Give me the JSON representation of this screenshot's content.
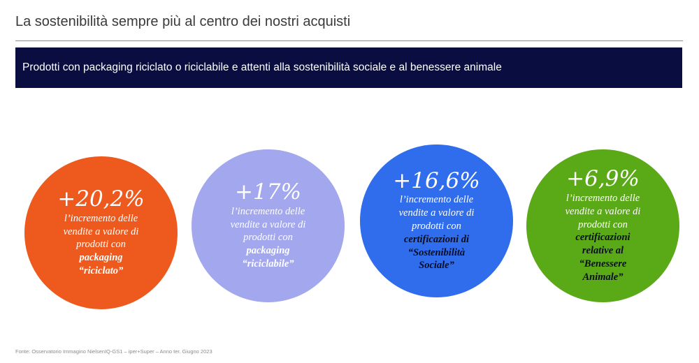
{
  "header": {
    "title": "La sostenibilità sempre più al centro dei nostri acquisti"
  },
  "banner": {
    "text": "Prodotti con packaging riciclato o riciclabile e attenti alla sostenibilità sociale e al benessere animale"
  },
  "colors": {
    "banner_bg": "#0a0d40",
    "circle_1": "#ee5a1e",
    "circle_2": "#a2a7ee",
    "circle_3": "#2f6ded",
    "circle_4": "#5aa917"
  },
  "stats": [
    {
      "value": "+20,2%",
      "lines": [
        "l’incremento delle",
        "vendite a valore di",
        "prodotti con"
      ],
      "strong": [
        "packaging",
        "“riciclato”"
      ]
    },
    {
      "value": "+17%",
      "lines": [
        "l’incremento delle",
        "vendite a valore di",
        "prodotti con"
      ],
      "strong": [
        "packaging",
        "“riciclabile”"
      ]
    },
    {
      "value": "+16,6%",
      "lines": [
        "l’incremento delle",
        "vendite a valore di",
        "prodotti con"
      ],
      "strong": [
        "certificazioni di",
        "“Sostenibilità",
        "Sociale”"
      ]
    },
    {
      "value": "+6,9%",
      "lines": [
        "l’incremento delle",
        "vendite a valore di",
        "prodotti con"
      ],
      "strong": [
        "certificazioni",
        "relative al",
        "“Benessere",
        "Animale”"
      ]
    }
  ],
  "footer": {
    "source": "Fonte: Osservatorio Immagino NielsenIQ-GS1  – iper+Super – Anno  ter. Giugno 2023"
  }
}
